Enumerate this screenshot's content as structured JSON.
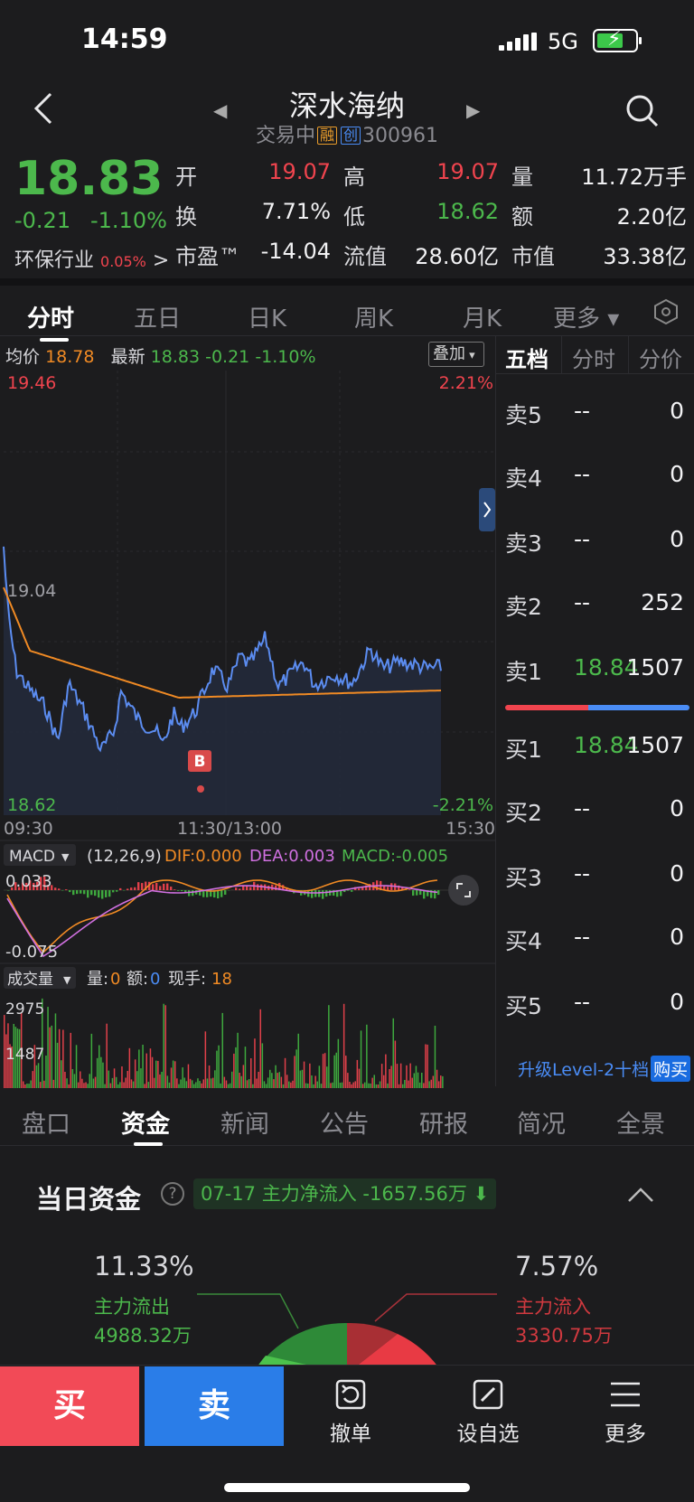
{
  "status": {
    "time": "14:59",
    "network": "5G"
  },
  "header": {
    "title": "深水海纳",
    "status": "交易中",
    "tag1": "融",
    "tag2": "创",
    "code": "300961"
  },
  "quote": {
    "price": "18.83",
    "change": "-0.21",
    "change_pct": "-1.10%",
    "open_label": "开",
    "open": "19.07",
    "high_label": "高",
    "high": "19.07",
    "vol_label": "量",
    "vol": "11.72万手",
    "turnover_label": "换",
    "turnover": "7.71%",
    "low_label": "低",
    "low": "18.62",
    "amount_label": "额",
    "amount": "2.20亿",
    "industry": "环保行业",
    "industry_pct": "0.05%",
    "pe_label": "市盈™",
    "pe": "-14.04",
    "float_label": "流值",
    "float_cap": "28.60亿",
    "mcap_label": "市值",
    "mcap": "33.38亿"
  },
  "tabs": [
    "分时",
    "五日",
    "日K",
    "周K",
    "月K",
    "更多 ▾"
  ],
  "chart_info": {
    "avg_label": "均价",
    "avg": "18.78",
    "latest_label": "最新",
    "latest": "18.83",
    "chg": "-0.21",
    "chg_pct": "-1.10%",
    "overlay": "叠加",
    "y_top": "19.46",
    "y_top_pct": "2.21%",
    "y_mid": "19.04",
    "y_bottom": "18.62",
    "y_bottom_pct": "-2.21%",
    "x_start": "09:30",
    "x_mid": "11:30/13:00",
    "x_end": "15:30",
    "marker": "B"
  },
  "macd": {
    "label": "MACD",
    "params": "(12,26,9)",
    "dif": "DIF:0.000",
    "dea": "DEA:0.003",
    "macd": "MACD:-0.005",
    "top": "0.033",
    "bottom": "-0.075"
  },
  "volume": {
    "label": "成交量",
    "vol": "量:",
    "vol_v": "0",
    "amt": "额:",
    "amt_v": "0",
    "now": "现手:",
    "now_v": "18",
    "top": "2975",
    "mid": "1487"
  },
  "orderbook": {
    "tabs": [
      "五档",
      "分时",
      "分价"
    ],
    "asks": [
      {
        "label": "卖5",
        "price": "--",
        "vol": "0"
      },
      {
        "label": "卖4",
        "price": "--",
        "vol": "0"
      },
      {
        "label": "卖3",
        "price": "--",
        "vol": "0"
      },
      {
        "label": "卖2",
        "price": "--",
        "vol": "252"
      },
      {
        "label": "卖1",
        "price": "18.84",
        "vol": "1507"
      }
    ],
    "bids": [
      {
        "label": "买1",
        "price": "18.84",
        "vol": "1507"
      },
      {
        "label": "买2",
        "price": "--",
        "vol": "0"
      },
      {
        "label": "买3",
        "price": "--",
        "vol": "0"
      },
      {
        "label": "买4",
        "price": "--",
        "vol": "0"
      },
      {
        "label": "买5",
        "price": "--",
        "vol": "0"
      }
    ],
    "upgrade": "升级Level-2十档",
    "buy_badge": "购买"
  },
  "bottom_tabs": [
    "盘口",
    "资金",
    "新闻",
    "公告",
    "研报",
    "简况",
    "全景"
  ],
  "capital": {
    "title": "当日资金",
    "date": "07-17",
    "net_label": "主力净流入",
    "net": "-1657.56万",
    "out_pct": "11.33%",
    "out_label": "主力流出",
    "out_value": "4988.32万",
    "in_pct": "7.57%",
    "in_label": "主力流入",
    "in_value": "3330.75万"
  },
  "actions": {
    "buy": "买",
    "sell": "卖",
    "cancel": "撤单",
    "watch": "设自选",
    "more": "更多"
  },
  "colors": {
    "up": "#f0444e",
    "down": "#4cb84c",
    "avg_line": "#f08a24",
    "price_line": "#5b8cf0"
  }
}
